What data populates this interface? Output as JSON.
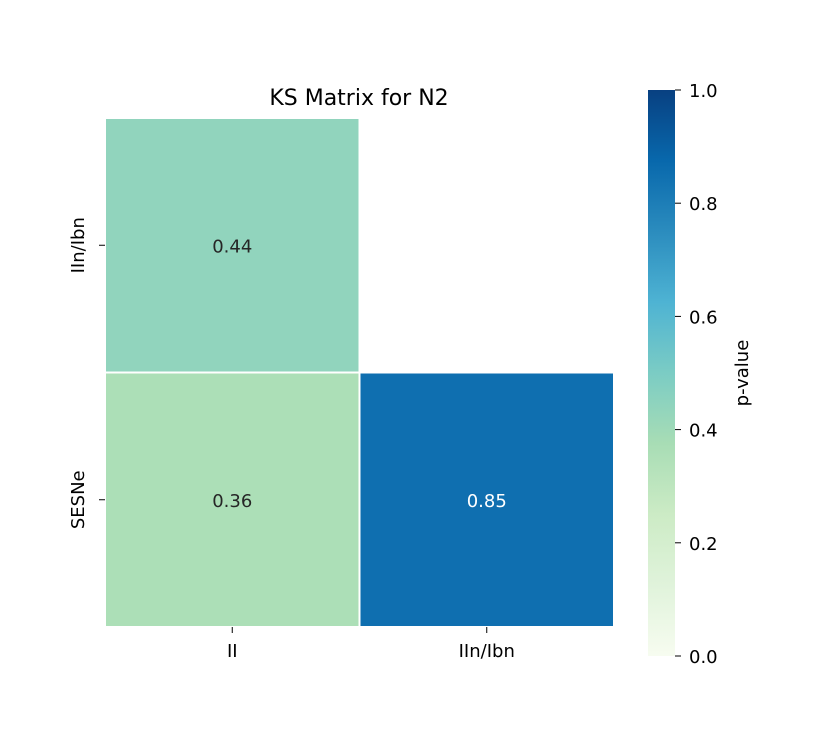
{
  "chart_data": {
    "type": "heatmap",
    "title": "KS Matrix for N2",
    "x_categories": [
      "II",
      "IIn/Ibn"
    ],
    "y_categories": [
      "IIn/Ibn",
      "SESNe"
    ],
    "cells": [
      {
        "row": 0,
        "col": 0,
        "value": 0.44,
        "label": "0.44"
      },
      {
        "row": 1,
        "col": 0,
        "value": 0.36,
        "label": "0.36"
      },
      {
        "row": 1,
        "col": 1,
        "value": 0.85,
        "label": "0.85"
      }
    ],
    "masked_cells": [
      {
        "row": 0,
        "col": 1
      }
    ],
    "colorbar": {
      "label": "p-value",
      "range": [
        0.0,
        1.0
      ],
      "ticks": [
        "0.0",
        "0.2",
        "0.4",
        "0.6",
        "0.8",
        "1.0"
      ],
      "colormap": "GnBu",
      "colormap_stops": [
        "#f7fcf0",
        "#e0f3db",
        "#ccebc5",
        "#a8ddb5",
        "#7bccc4",
        "#4eb3d3",
        "#2b8cbe",
        "#0868ac",
        "#084081"
      ]
    }
  }
}
